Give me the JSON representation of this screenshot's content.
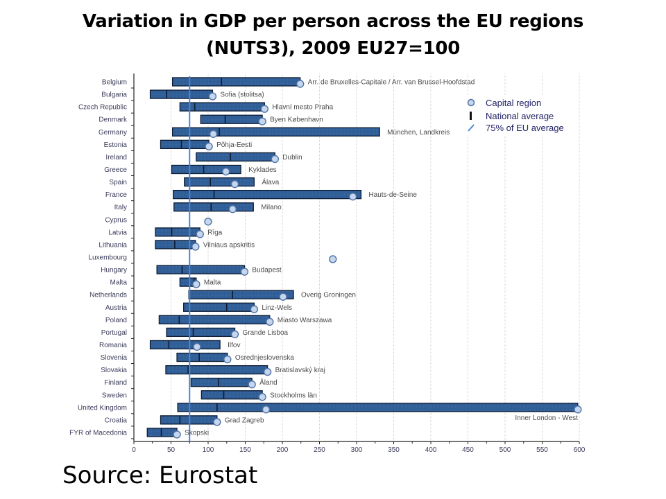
{
  "page": {
    "title_line1": "Variation  in GDP per person across the EU regions",
    "title_line2": "(NUTS3), 2009 EU27=100",
    "source": "Source: Eurostat"
  },
  "chart_data": {
    "type": "bar",
    "subtype": "horizontal range bar with markers",
    "title": "Variation in GDP per person across the EU regions (NUTS3), 2009 EU27=100",
    "xlabel": "",
    "ylabel": "",
    "xlim": [
      0,
      600
    ],
    "xticks": [
      0,
      50,
      100,
      150,
      200,
      250,
      300,
      350,
      400,
      450,
      500,
      550,
      600
    ],
    "grid": "vertical",
    "legend_position": "top-right",
    "legend": [
      {
        "key": "capital",
        "label": "Capital region",
        "icon": "circle-marker"
      },
      {
        "key": "national",
        "label": "National average",
        "icon": "vertical-tick"
      },
      {
        "key": "eu75",
        "label": "75% of EU average",
        "icon": "blue-line"
      }
    ],
    "reference_line": {
      "label": "75% of EU average",
      "value": 75,
      "color": "#4a86d8"
    },
    "colors": {
      "bar": "#2f5d95",
      "bar_border": "#0d1b33",
      "marker": "#c5d6ee",
      "marker_border": "#4f73a6",
      "grid": "#d0d0d0"
    },
    "categories": [
      "Belgium",
      "Bulgaria",
      "Czech Republic",
      "Denmark",
      "Germany",
      "Estonia",
      "Ireland",
      "Greece",
      "Spain",
      "France",
      "Italy",
      "Cyprus",
      "Latvia",
      "Lithuania",
      "Luxembourg",
      "Hungary",
      "Malta",
      "Netherlands",
      "Austria",
      "Poland",
      "Portugal",
      "Romania",
      "Slovenia",
      "Slovakia",
      "Finland",
      "Sweden",
      "United Kingdom",
      "Croatia",
      "FYR of Macedonia"
    ],
    "series": [
      {
        "name": "Minimum region",
        "values": [
          52,
          22,
          62,
          90,
          52,
          36,
          84,
          51,
          68,
          53,
          54,
          null,
          29,
          29,
          null,
          31,
          62,
          74,
          67,
          34,
          44,
          22,
          58,
          43,
          77,
          91,
          59,
          36,
          18
        ]
      },
      {
        "name": "National average",
        "values": [
          118,
          44,
          82,
          123,
          115,
          64,
          130,
          94,
          103,
          108,
          104,
          null,
          51,
          55,
          null,
          65,
          81,
          133,
          125,
          61,
          80,
          47,
          88,
          73,
          114,
          121,
          112,
          62,
          37
        ]
      },
      {
        "name": "Maximum region",
        "values": [
          224,
          106,
          176,
          173,
          331,
          101,
          190,
          144,
          162,
          306,
          161,
          null,
          89,
          83,
          null,
          149,
          84,
          215,
          162,
          183,
          136,
          116,
          126,
          180,
          159,
          173,
          598,
          112,
          58
        ]
      },
      {
        "name": "Capital region",
        "values": [
          224,
          106,
          176,
          173,
          107,
          101,
          190,
          124,
          136,
          295,
          133,
          100,
          89,
          83,
          268,
          149,
          84,
          201,
          162,
          183,
          136,
          85,
          126,
          180,
          159,
          173,
          178,
          112,
          58
        ]
      }
    ],
    "extra_markers": [
      {
        "category": "United Kingdom",
        "value": 598
      }
    ],
    "annotations": [
      {
        "category": "Belgium",
        "text": "Arr. de Bruxelles-Capitale / Arr. van Brussel-Hoofdstad",
        "value": 224
      },
      {
        "category": "Bulgaria",
        "text": "Sofia (stolitsa)",
        "value": 106
      },
      {
        "category": "Czech Republic",
        "text": "Hlavní mesto Praha",
        "value": 176
      },
      {
        "category": "Denmark",
        "text": "Byen København",
        "value": 173
      },
      {
        "category": "Germany",
        "text": "München, Landkreis",
        "value": 331
      },
      {
        "category": "Estonia",
        "text": "Põhja-Eesti",
        "value": 101
      },
      {
        "category": "Ireland",
        "text": "Dublin",
        "value": 190
      },
      {
        "category": "Greece",
        "text": "Kyklades",
        "value": 144
      },
      {
        "category": "Spain",
        "text": "Álava",
        "value": 162
      },
      {
        "category": "France",
        "text": "Hauts-de-Seine",
        "value": 306
      },
      {
        "category": "Italy",
        "text": "Milano",
        "value": 161
      },
      {
        "category": "Latvia",
        "text": "Rīga",
        "value": 89
      },
      {
        "category": "Lithuania",
        "text": "Vilniaus apskritis",
        "value": 83
      },
      {
        "category": "Hungary",
        "text": "Budapest",
        "value": 149
      },
      {
        "category": "Malta",
        "text": "Malta",
        "value": 84
      },
      {
        "category": "Netherlands",
        "text": "Overig Groningen",
        "value": 215
      },
      {
        "category": "Austria",
        "text": "Linz-Wels",
        "value": 162
      },
      {
        "category": "Poland",
        "text": "Miasto Warszawa",
        "value": 183
      },
      {
        "category": "Portugal",
        "text": "Grande Lisboa",
        "value": 136
      },
      {
        "category": "Romania",
        "text": "Ilfov",
        "value": 116
      },
      {
        "category": "Slovenia",
        "text": "Osrednjeslovenska",
        "value": 126
      },
      {
        "category": "Slovakia",
        "text": "Bratislavský kraj",
        "value": 180
      },
      {
        "category": "Finland",
        "text": "Åland",
        "value": 159
      },
      {
        "category": "Sweden",
        "text": "Stockholms län",
        "value": 173
      },
      {
        "category": "United Kingdom",
        "text": "Inner London - West",
        "value": 598,
        "below": true
      },
      {
        "category": "Croatia",
        "text": "Grad Zagreb",
        "value": 112
      },
      {
        "category": "FYR of Macedonia",
        "text": "Skopski",
        "value": 58
      }
    ]
  }
}
